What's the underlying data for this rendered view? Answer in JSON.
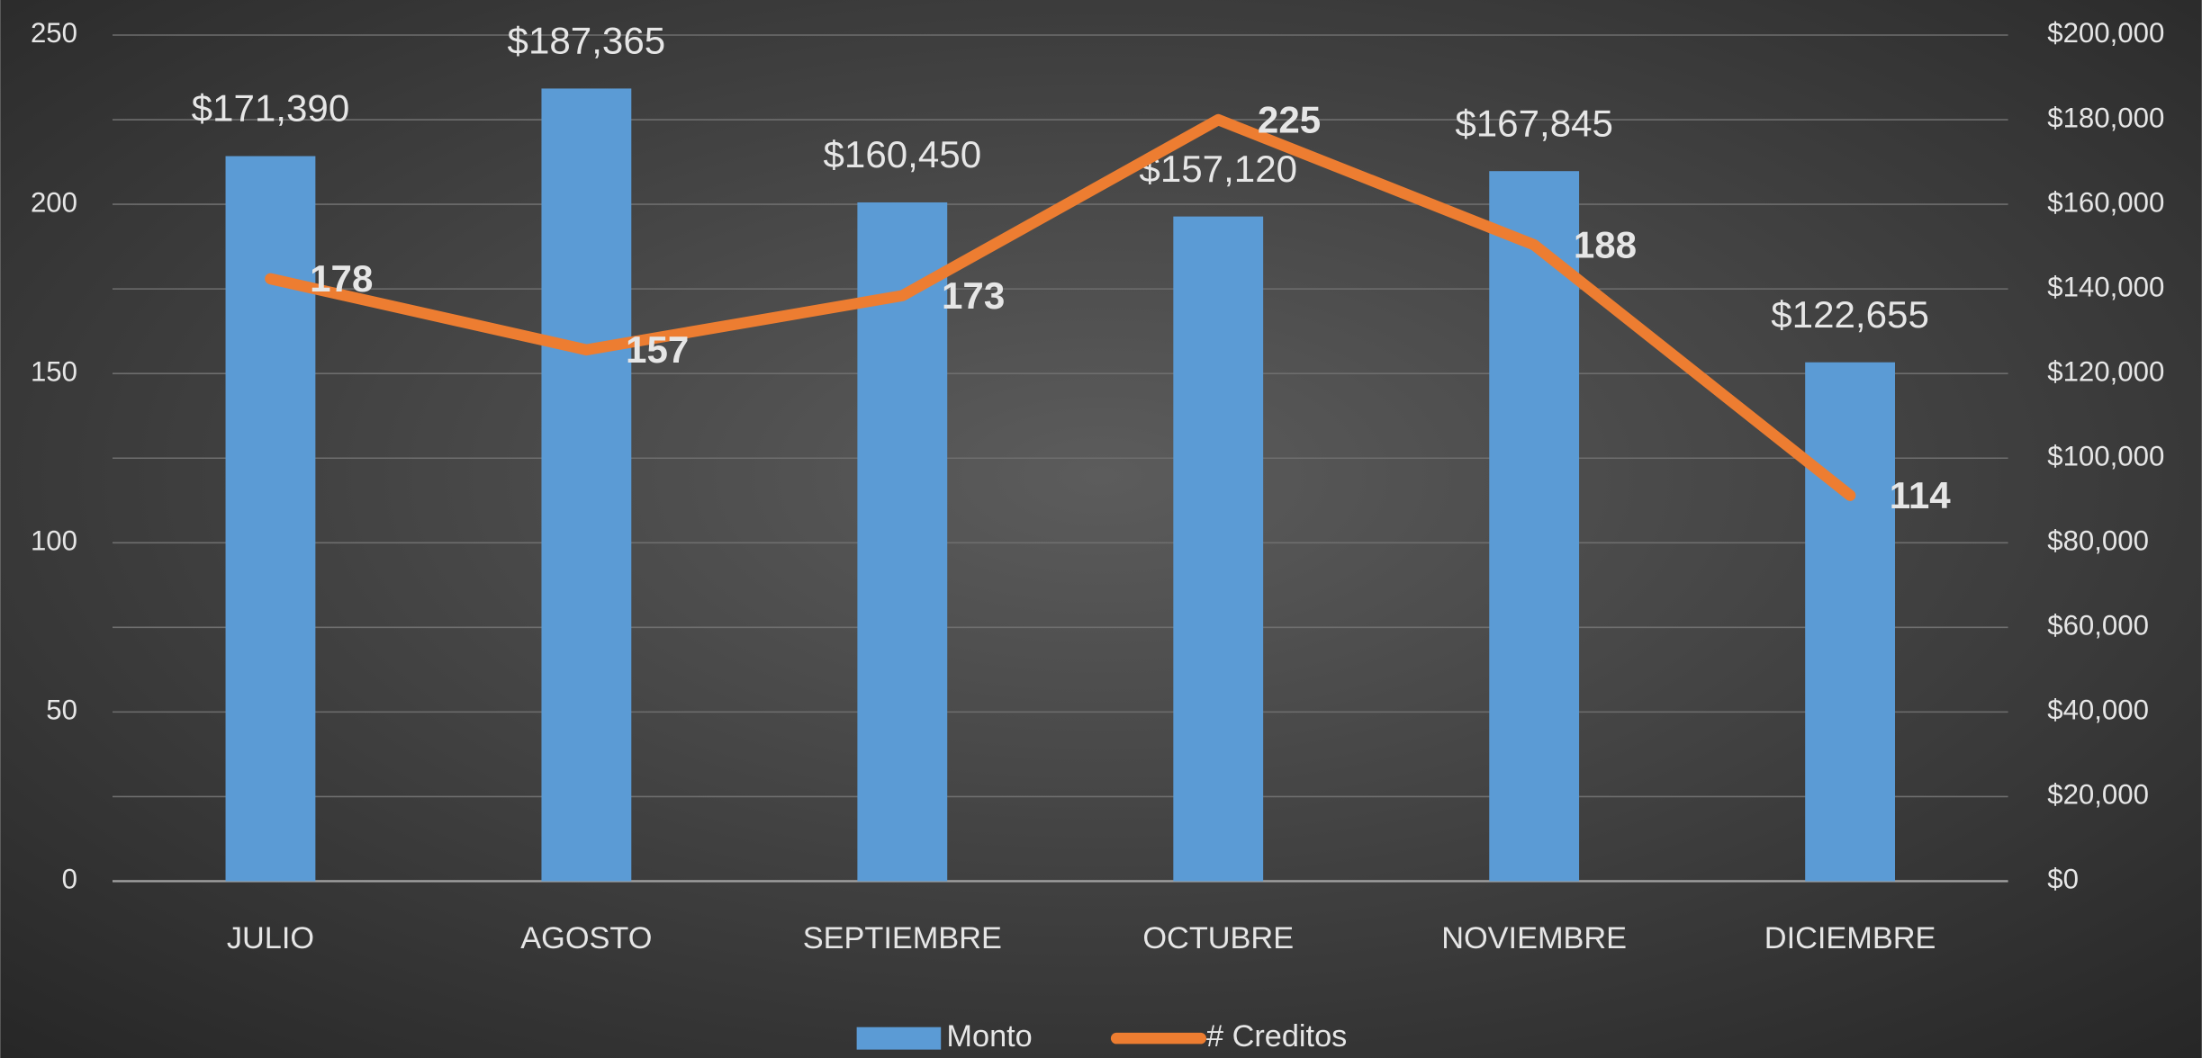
{
  "chart_data": {
    "type": "bar_line",
    "categories": [
      "JULIO",
      "AGOSTO",
      "SEPTIEMBRE",
      "OCTUBRE",
      "NOVIEMBRE",
      "DICIEMBRE"
    ],
    "series": [
      {
        "name": "Monto",
        "type": "bar",
        "axis": "y2",
        "color": "#5b9bd5",
        "values": [
          171390,
          187365,
          160450,
          157120,
          167845,
          122655
        ],
        "value_labels": [
          "$171,390",
          "$187,365",
          "$160,450",
          "$157,120",
          "$167,845",
          "$122,655"
        ]
      },
      {
        "name": "# Creditos",
        "type": "line",
        "axis": "y",
        "color": "#ed7d31",
        "values": [
          178,
          157,
          173,
          225,
          188,
          114
        ]
      }
    ],
    "ylim": [
      0,
      250
    ],
    "yticks": [
      0,
      50,
      100,
      150,
      200,
      250
    ],
    "y2lim": [
      0,
      200000
    ],
    "y2ticks": [
      {
        "value": 0,
        "label": "$0"
      },
      {
        "value": 20000,
        "label": "$20,000"
      },
      {
        "value": 40000,
        "label": "$40,000"
      },
      {
        "value": 60000,
        "label": "$60,000"
      },
      {
        "value": 80000,
        "label": "$80,000"
      },
      {
        "value": 100000,
        "label": "$100,000"
      },
      {
        "value": 120000,
        "label": "$120,000"
      },
      {
        "value": 140000,
        "label": "$140,000"
      },
      {
        "value": 160000,
        "label": "$160,000"
      },
      {
        "value": 180000,
        "label": "$180,000"
      },
      {
        "value": 200000,
        "label": "$200,000"
      }
    ],
    "grid": true,
    "legend": "bottom"
  }
}
